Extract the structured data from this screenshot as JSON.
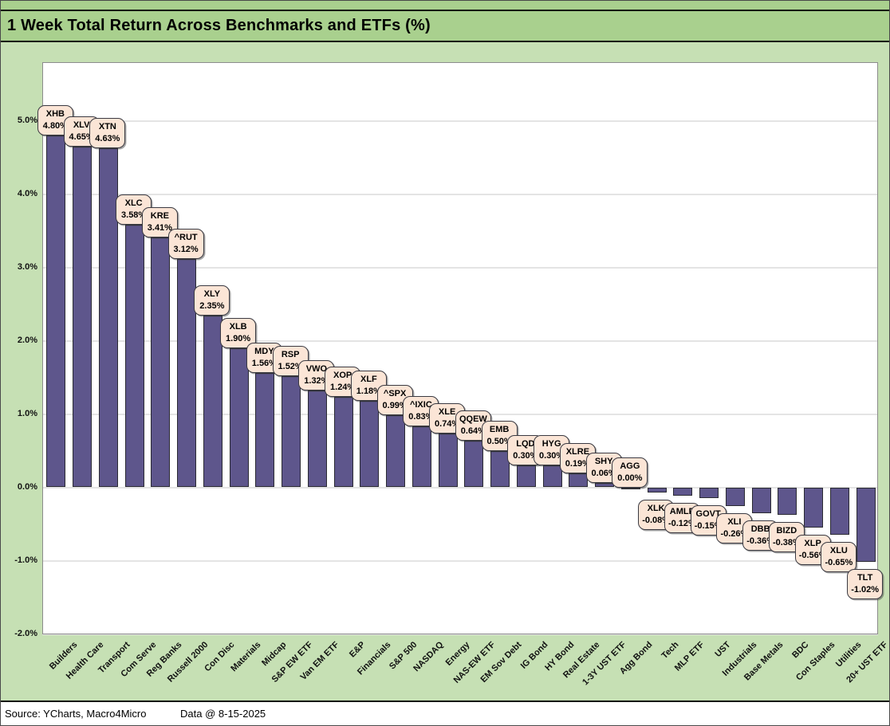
{
  "title": "1 Week Total Return Across Benchmarks and ETFs (%)",
  "footer": {
    "source": "Source: YCharts, Macro4Micro",
    "data_date": "Data @ 8-15-2025"
  },
  "colors": {
    "page_bg": "#C6E0B4",
    "title_bg": "#A9D08E",
    "bar_fill": "#5E568C",
    "bar_border": "#2B2B33",
    "callout_fill": "#FBE5D6",
    "callout_border": "#3A3A42",
    "gridline": "#E4E4E4",
    "plot_border": "#8C8C8C"
  },
  "chart_data": {
    "type": "bar",
    "title": "1 Week Total Return Across Benchmarks and ETFs (%)",
    "categories": [
      "Builders",
      "Health Care",
      "Transport",
      "Com Serve",
      "Reg Banks",
      "Russell 2000",
      "Con Disc",
      "Materials",
      "Midcap",
      "S&P EW ETF",
      "Van EM ETF",
      "E&P",
      "Financials",
      "S&P 500",
      "NASDAQ",
      "Energy",
      "NAS-EW ETF",
      "EM Sov Debt",
      "IG Bond",
      "HY Bond",
      "Real Estate",
      "1-3Y UST ETF",
      "Agg Bond",
      "Tech",
      "MLP ETF",
      "UST",
      "Industrials",
      "Base Metals",
      "BDC",
      "Con Staples",
      "Utilities",
      "20+ UST ETF"
    ],
    "tickers": [
      "XHB",
      "XLV",
      "XTN",
      "XLC",
      "KRE",
      "^RUT",
      "XLY",
      "XLB",
      "MDY",
      "RSP",
      "VWO",
      "XOP",
      "XLF",
      "^SPX",
      "^IXIC",
      "XLE",
      "QQEW",
      "EMB",
      "LQD",
      "HYG",
      "XLRE",
      "SHY",
      "AGG",
      "XLK",
      "AMLP",
      "GOVT",
      "XLI",
      "DBB",
      "BIZD",
      "XLP",
      "XLU",
      "TLT"
    ],
    "values": [
      4.8,
      4.65,
      4.63,
      3.58,
      3.41,
      3.12,
      2.35,
      1.9,
      1.56,
      1.52,
      1.32,
      1.24,
      1.18,
      0.99,
      0.83,
      0.74,
      0.64,
      0.5,
      0.3,
      0.3,
      0.19,
      0.06,
      0.0,
      -0.08,
      -0.12,
      -0.15,
      -0.26,
      -0.36,
      -0.38,
      -0.56,
      -0.65,
      -1.02
    ],
    "value_labels": [
      "4.80%",
      "4.65%",
      "4.63%",
      "3.58%",
      "3.41%",
      "3.12%",
      "2.35%",
      "1.90%",
      "1.56%",
      "1.52%",
      "1.32%",
      "1.24%",
      "1.18%",
      "0.99%",
      "0.83%",
      "0.74%",
      "0.64%",
      "0.50%",
      "0.30%",
      "0.30%",
      "0.19%",
      "0.06%",
      "0.00%",
      "-0.08%",
      "-0.12%",
      "-0.15%",
      "-0.26%",
      "-0.36%",
      "-0.38%",
      "-0.56%",
      "-0.65%",
      "-1.02%"
    ],
    "xlabel": "",
    "ylabel": "",
    "ylim": [
      -2.0,
      5.8
    ],
    "yticks": [
      5.0,
      4.0,
      3.0,
      2.0,
      1.0,
      0.0,
      -1.0,
      -2.0
    ],
    "ytick_labels": [
      "5.0%",
      "4.0%",
      "3.0%",
      "2.0%",
      "1.0%",
      "0.0%",
      "-1.0%",
      "-2.0%"
    ],
    "grid": true,
    "legend": false
  }
}
